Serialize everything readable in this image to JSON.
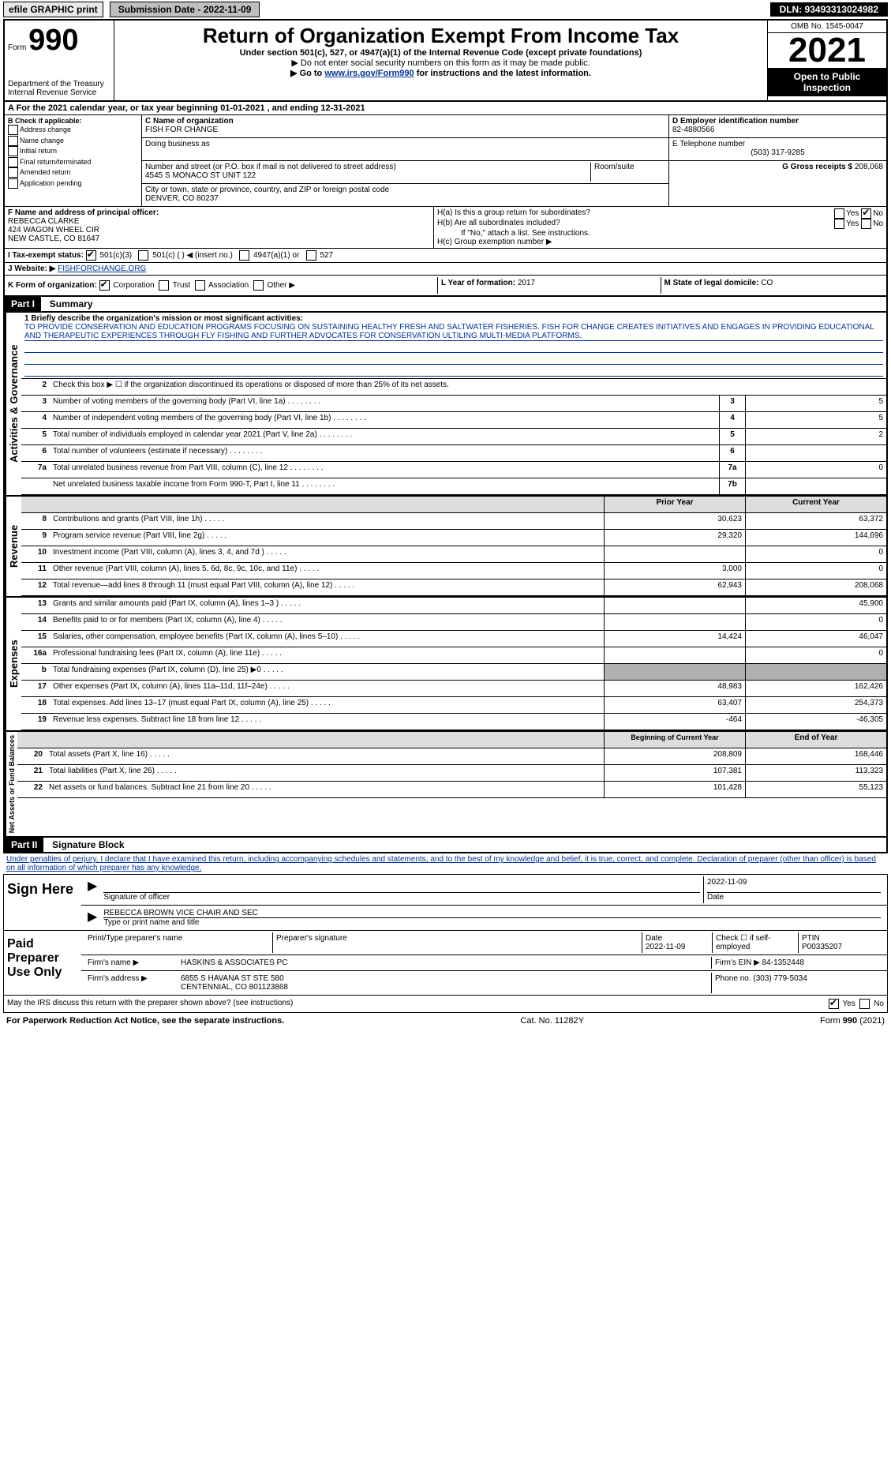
{
  "topbar": {
    "efile": "efile GRAPHIC print",
    "submission_label": "Submission Date - 2022-11-09",
    "dln": "DLN: 93493313024982"
  },
  "header": {
    "form_label": "Form",
    "form_number": "990",
    "dept": "Department of the Treasury",
    "irs": "Internal Revenue Service",
    "title": "Return of Organization Exempt From Income Tax",
    "subtitle": "Under section 501(c), 527, or 4947(a)(1) of the Internal Revenue Code (except private foundations)",
    "ssn_note": "▶ Do not enter social security numbers on this form as it may be made public.",
    "goto_prefix": "▶ Go to ",
    "goto_link": "www.irs.gov/Form990",
    "goto_suffix": " for instructions and the latest information.",
    "omb": "OMB No. 1545-0047",
    "year": "2021",
    "open": "Open to Public Inspection"
  },
  "line_A": "A For the 2021 calendar year, or tax year beginning 01-01-2021    , and ending 12-31-2021",
  "box_B": {
    "label": "B Check if applicable:",
    "items": [
      "Address change",
      "Name change",
      "Initial return",
      "Final return/terminated",
      "Amended return",
      "Application pending"
    ]
  },
  "box_C": {
    "name_label": "C Name of organization",
    "name": "FISH FOR CHANGE",
    "dba_label": "Doing business as",
    "dba": "",
    "street_label": "Number and street (or P.O. box if mail is not delivered to street address)",
    "room_label": "Room/suite",
    "street": "4545 S MONACO ST UNIT 122",
    "city_label": "City or town, state or province, country, and ZIP or foreign postal code",
    "city": "DENVER, CO  80237"
  },
  "box_D": {
    "ein_label": "D Employer identification number",
    "ein": "82-4880566",
    "phone_label": "E Telephone number",
    "phone": "(503) 317-9285",
    "gross_label": "G Gross receipts $",
    "gross": "208,068"
  },
  "box_F": {
    "label": "F  Name and address of principal officer:",
    "name": "REBECCA CLARKE",
    "addr1": "424 WAGON WHEEL CIR",
    "addr2": "NEW CASTLE, CO  81647"
  },
  "box_H": {
    "a": "H(a)  Is this a group return for subordinates?",
    "b": "H(b)  Are all subordinates included?",
    "b_note": "If \"No,\" attach a list. See instructions.",
    "c": "H(c)  Group exemption number ▶",
    "yes": "Yes",
    "no": "No"
  },
  "box_I": {
    "label": "I    Tax-exempt status:",
    "opts": [
      "501(c)(3)",
      "501(c) (   ) ◀ (insert no.)",
      "4947(a)(1) or",
      "527"
    ]
  },
  "box_J": {
    "label": "J   Website: ▶",
    "value": " FISHFORCHANGE.ORG"
  },
  "box_K": {
    "label": "K Form of organization:",
    "opts": [
      "Corporation",
      "Trust",
      "Association",
      "Other ▶"
    ],
    "L_label": "L Year of formation:",
    "L_value": "2017",
    "M_label": "M State of legal domicile:",
    "M_value": "CO"
  },
  "part1": {
    "header": "Part I",
    "title": "Summary"
  },
  "mission": {
    "label": "1  Briefly describe the organization's mission or most significant activities:",
    "text": "TO PROVIDE CONSERVATION AND EDUCATION PROGRAMS FOCUSING ON SUSTAINING HEALTHY FRESH AND SALTWATER FISHERIES. FISH FOR CHANGE CREATES INITIATIVES AND ENGAGES IN PROVIDING EDUCATIONAL AND THERAPEUTIC EXPERIENCES THROUGH FLY FISHING AND FURTHER ADVOCATES FOR CONSERVATION ULTILING MULTI-MEDIA PLATFORMS."
  },
  "governance": {
    "section": "Activities & Governance",
    "line2": "Check this box ▶ ☐  if the organization discontinued its operations or disposed of more than 25% of its net assets.",
    "lines": [
      {
        "n": "3",
        "d": "Number of voting members of the governing body (Part VI, line 1a)",
        "b": "3",
        "v": "5"
      },
      {
        "n": "4",
        "d": "Number of independent voting members of the governing body (Part VI, line 1b)",
        "b": "4",
        "v": "5"
      },
      {
        "n": "5",
        "d": "Total number of individuals employed in calendar year 2021 (Part V, line 2a)",
        "b": "5",
        "v": "2"
      },
      {
        "n": "6",
        "d": "Total number of volunteers (estimate if necessary)",
        "b": "6",
        "v": ""
      },
      {
        "n": "7a",
        "d": "Total unrelated business revenue from Part VIII, column (C), line 12",
        "b": "7a",
        "v": "0"
      },
      {
        "n": "",
        "d": "Net unrelated business taxable income from Form 990-T, Part I, line 11",
        "b": "7b",
        "v": ""
      }
    ]
  },
  "revenue": {
    "section": "Revenue",
    "header_prior": "Prior Year",
    "header_current": "Current Year",
    "lines": [
      {
        "n": "8",
        "d": "Contributions and grants (Part VIII, line 1h)",
        "p": "30,623",
        "c": "63,372"
      },
      {
        "n": "9",
        "d": "Program service revenue (Part VIII, line 2g)",
        "p": "29,320",
        "c": "144,696"
      },
      {
        "n": "10",
        "d": "Investment income (Part VIII, column (A), lines 3, 4, and 7d )",
        "p": "",
        "c": "0"
      },
      {
        "n": "11",
        "d": "Other revenue (Part VIII, column (A), lines 5, 6d, 8c, 9c, 10c, and 11e)",
        "p": "3,000",
        "c": "0"
      },
      {
        "n": "12",
        "d": "Total revenue—add lines 8 through 11 (must equal Part VIII, column (A), line 12)",
        "p": "62,943",
        "c": "208,068"
      }
    ]
  },
  "expenses": {
    "section": "Expenses",
    "lines": [
      {
        "n": "13",
        "d": "Grants and similar amounts paid (Part IX, column (A), lines 1–3 )",
        "p": "",
        "c": "45,900"
      },
      {
        "n": "14",
        "d": "Benefits paid to or for members (Part IX, column (A), line 4)",
        "p": "",
        "c": "0"
      },
      {
        "n": "15",
        "d": "Salaries, other compensation, employee benefits (Part IX, column (A), lines 5–10)",
        "p": "14,424",
        "c": "46,047"
      },
      {
        "n": "16a",
        "d": "Professional fundraising fees (Part IX, column (A), line 11e)",
        "p": "",
        "c": "0"
      },
      {
        "n": "b",
        "d": "Total fundraising expenses (Part IX, column (D), line 25) ▶0",
        "p": "__GRAY__",
        "c": "__GRAY__"
      },
      {
        "n": "17",
        "d": "Other expenses (Part IX, column (A), lines 11a–11d, 11f–24e)",
        "p": "48,983",
        "c": "162,426"
      },
      {
        "n": "18",
        "d": "Total expenses. Add lines 13–17 (must equal Part IX, column (A), line 25)",
        "p": "63,407",
        "c": "254,373"
      },
      {
        "n": "19",
        "d": "Revenue less expenses. Subtract line 18 from line 12",
        "p": "-464",
        "c": "-46,305"
      }
    ]
  },
  "netassets": {
    "section": "Net Assets or Fund Balances",
    "header_begin": "Beginning of Current Year",
    "header_end": "End of Year",
    "lines": [
      {
        "n": "20",
        "d": "Total assets (Part X, line 16)",
        "p": "208,809",
        "c": "168,446"
      },
      {
        "n": "21",
        "d": "Total liabilities (Part X, line 26)",
        "p": "107,381",
        "c": "113,323"
      },
      {
        "n": "22",
        "d": "Net assets or fund balances. Subtract line 21 from line 20",
        "p": "101,428",
        "c": "55,123"
      }
    ]
  },
  "part2": {
    "header": "Part II",
    "title": "Signature Block",
    "declaration": "Under penalties of perjury, I declare that I have examined this return, including accompanying schedules and statements, and to the best of my knowledge and belief, it is true, correct, and complete. Declaration of preparer (other than officer) is based on all information of which preparer has any knowledge."
  },
  "sign": {
    "label": "Sign Here",
    "sig_label": "Signature of officer",
    "date_label": "Date",
    "date": "2022-11-09",
    "name": "REBECCA BROWN  VICE CHAIR AND SEC",
    "name_label": "Type or print name and title"
  },
  "preparer": {
    "label": "Paid Preparer Use Only",
    "print_label": "Print/Type preparer's name",
    "sig_label": "Preparer's signature",
    "date_label": "Date",
    "date": "2022-11-09",
    "check_label": "Check ☐ if self-employed",
    "ptin_label": "PTIN",
    "ptin": "P00335207",
    "firm_name_label": "Firm's name    ▶",
    "firm_name": "HASKINS & ASSOCIATES PC",
    "firm_ein_label": "Firm's EIN ▶",
    "firm_ein": "84-1352448",
    "firm_addr_label": "Firm's address ▶",
    "firm_addr1": "6855 S HAVANA ST STE 580",
    "firm_addr2": "CENTENNIAL, CO  801123868",
    "phone_label": "Phone no.",
    "phone": "(303) 779-5034"
  },
  "may_discuss": "May the IRS discuss this return with the preparer shown above? (see instructions)",
  "footer": {
    "left": "For Paperwork Reduction Act Notice, see the separate instructions.",
    "center": "Cat. No. 11282Y",
    "right": "Form 990 (2021)"
  },
  "colors": {
    "link": "#003399",
    "header_bg": "#000000",
    "gray": "#b0b0b0"
  }
}
